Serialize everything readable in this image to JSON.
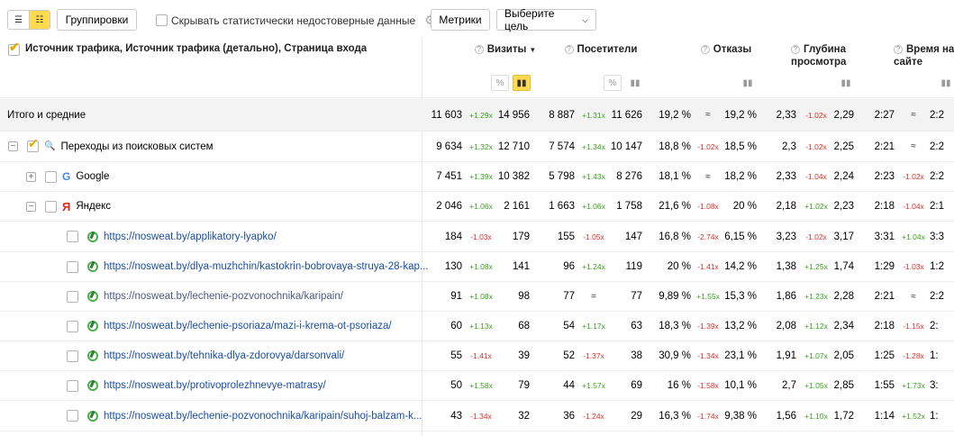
{
  "toolbar": {
    "groupings_label": "Группировки",
    "hide_stats_label": "Скрывать статистически недостоверные данные",
    "metrics_label": "Метрики",
    "goal_label": "Выберите цель"
  },
  "header": {
    "dimension_title": "Источник трафика, Источник трафика (детально), Страница входа",
    "visits": "Визиты",
    "visitors": "Посетители",
    "bounces": "Отказы",
    "depth": "Глубина просмотра",
    "time": "Время на сайте",
    "percent_symbol": "%"
  },
  "rows": [
    {
      "label": "Итого и средние",
      "type": "total",
      "visits": "11 603",
      "visits_ch": "+1.29x",
      "visits_prev": "14 956",
      "visitors": "8 887",
      "visitors_ch": "+1.31x",
      "visitors_prev": "11 626",
      "bounce": "19,2 %",
      "bounce_ch": "≈",
      "bounce_prev": "19,2 %",
      "depth": "2,33",
      "depth_ch": "-1.02x",
      "depth_prev": "2,29",
      "time": "2:27",
      "time_ch": "≈",
      "time_prev": "2:2"
    },
    {
      "label": "Переходы из поисковых систем",
      "type": "group",
      "visits": "9 634",
      "visits_ch": "+1.32x",
      "visits_prev": "12 710",
      "visitors": "7 574",
      "visitors_ch": "+1.34x",
      "visitors_prev": "10 147",
      "bounce": "18,8 %",
      "bounce_ch": "-1.02x",
      "bounce_prev": "18,5 %",
      "depth": "2,3",
      "depth_ch": "-1.02x",
      "depth_prev": "2,25",
      "time": "2:21",
      "time_ch": "≈",
      "time_prev": "2:2"
    },
    {
      "label": "Google",
      "type": "google",
      "visits": "7 451",
      "visits_ch": "+1.39x",
      "visits_prev": "10 382",
      "visitors": "5 798",
      "visitors_ch": "+1.43x",
      "visitors_prev": "8 276",
      "bounce": "18,1 %",
      "bounce_ch": "≈",
      "bounce_prev": "18,2 %",
      "depth": "2,33",
      "depth_ch": "-1.04x",
      "depth_prev": "2,24",
      "time": "2:23",
      "time_ch": "-1.02x",
      "time_prev": "2:2"
    },
    {
      "label": "Яндекс",
      "type": "yandex",
      "visits": "2 046",
      "visits_ch": "+1.06x",
      "visits_prev": "2 161",
      "visitors": "1 663",
      "visitors_ch": "+1.06x",
      "visitors_prev": "1 758",
      "bounce": "21,6 %",
      "bounce_ch": "-1.08x",
      "bounce_prev": "20 %",
      "depth": "2,18",
      "depth_ch": "+1.02x",
      "depth_prev": "2,23",
      "time": "2:18",
      "time_ch": "-1.04x",
      "time_prev": "2:1"
    },
    {
      "label": "https://nosweat.by/applikatory-lyapko/",
      "type": "page",
      "visits": "184",
      "visits_ch": "-1.03x",
      "visits_prev": "179",
      "visitors": "155",
      "visitors_ch": "-1.05x",
      "visitors_prev": "147",
      "bounce": "16,8 %",
      "bounce_ch": "-2.74x",
      "bounce_prev": "6,15 %",
      "depth": "3,23",
      "depth_ch": "-1.02x",
      "depth_prev": "3,17",
      "time": "3:31",
      "time_ch": "+1.04x",
      "time_prev": "3:3"
    },
    {
      "label": "https://nosweat.by/dlya-muzhchin/kastokrin-bobrovaya-struya-28-kap...",
      "type": "page",
      "visits": "130",
      "visits_ch": "+1.08x",
      "visits_prev": "141",
      "visitors": "96",
      "visitors_ch": "+1.24x",
      "visitors_prev": "119",
      "bounce": "20 %",
      "bounce_ch": "-1.41x",
      "bounce_prev": "14,2 %",
      "depth": "1,38",
      "depth_ch": "+1.25x",
      "depth_prev": "1,74",
      "time": "1:29",
      "time_ch": "-1.03x",
      "time_prev": "1:2"
    },
    {
      "label": "https://nosweat.by/lechenie-pozvonochnika/karipain/",
      "type": "page-visited",
      "visits": "91",
      "visits_ch": "+1.08x",
      "visits_prev": "98",
      "visitors": "77",
      "visitors_ch": "=",
      "visitors_prev": "77",
      "bounce": "9,89 %",
      "bounce_ch": "+1.55x",
      "bounce_prev": "15,3 %",
      "depth": "1,86",
      "depth_ch": "+1.23x",
      "depth_prev": "2,28",
      "time": "2:21",
      "time_ch": "≈",
      "time_prev": "2:2"
    },
    {
      "label": "https://nosweat.by/lechenie-psoriaza/mazi-i-krema-ot-psoriaza/",
      "type": "page",
      "visits": "60",
      "visits_ch": "+1.13x",
      "visits_prev": "68",
      "visitors": "54",
      "visitors_ch": "+1.17x",
      "visitors_prev": "63",
      "bounce": "18,3 %",
      "bounce_ch": "-1.39x",
      "bounce_prev": "13,2 %",
      "depth": "2,08",
      "depth_ch": "+1.12x",
      "depth_prev": "2,34",
      "time": "2:18",
      "time_ch": "-1.15x",
      "time_prev": "2:"
    },
    {
      "label": "https://nosweat.by/tehnika-dlya-zdorovya/darsonvali/",
      "type": "page",
      "visits": "55",
      "visits_ch": "-1.41x",
      "visits_prev": "39",
      "visitors": "52",
      "visitors_ch": "-1.37x",
      "visitors_prev": "38",
      "bounce": "30,9 %",
      "bounce_ch": "-1.34x",
      "bounce_prev": "23,1 %",
      "depth": "1,91",
      "depth_ch": "+1.07x",
      "depth_prev": "2,05",
      "time": "1:25",
      "time_ch": "-1.28x",
      "time_prev": "1:"
    },
    {
      "label": "https://nosweat.by/protivoprolezhnevye-matrasy/",
      "type": "page",
      "visits": "50",
      "visits_ch": "+1.58x",
      "visits_prev": "79",
      "visitors": "44",
      "visitors_ch": "+1.57x",
      "visitors_prev": "69",
      "bounce": "16 %",
      "bounce_ch": "-1.58x",
      "bounce_prev": "10,1 %",
      "depth": "2,7",
      "depth_ch": "+1.05x",
      "depth_prev": "2,85",
      "time": "1:55",
      "time_ch": "+1.73x",
      "time_prev": "3:"
    },
    {
      "label": "https://nosweat.by/lechenie-pozvonochnika/karipain/suhoj-balzam-k...",
      "type": "page",
      "visits": "43",
      "visits_ch": "-1.34x",
      "visits_prev": "32",
      "visitors": "36",
      "visitors_ch": "-1.24x",
      "visitors_prev": "29",
      "bounce": "16,3 %",
      "bounce_ch": "-1.74x",
      "bounce_prev": "9,38 %",
      "depth": "1,56",
      "depth_ch": "+1.10x",
      "depth_prev": "1,72",
      "time": "1:14",
      "time_ch": "+1.52x",
      "time_prev": "1:"
    }
  ],
  "colors": {
    "accent": "#ffdb4d",
    "up": "#3b9e1f",
    "down": "#e0302a",
    "link": "#1a4fa5"
  }
}
